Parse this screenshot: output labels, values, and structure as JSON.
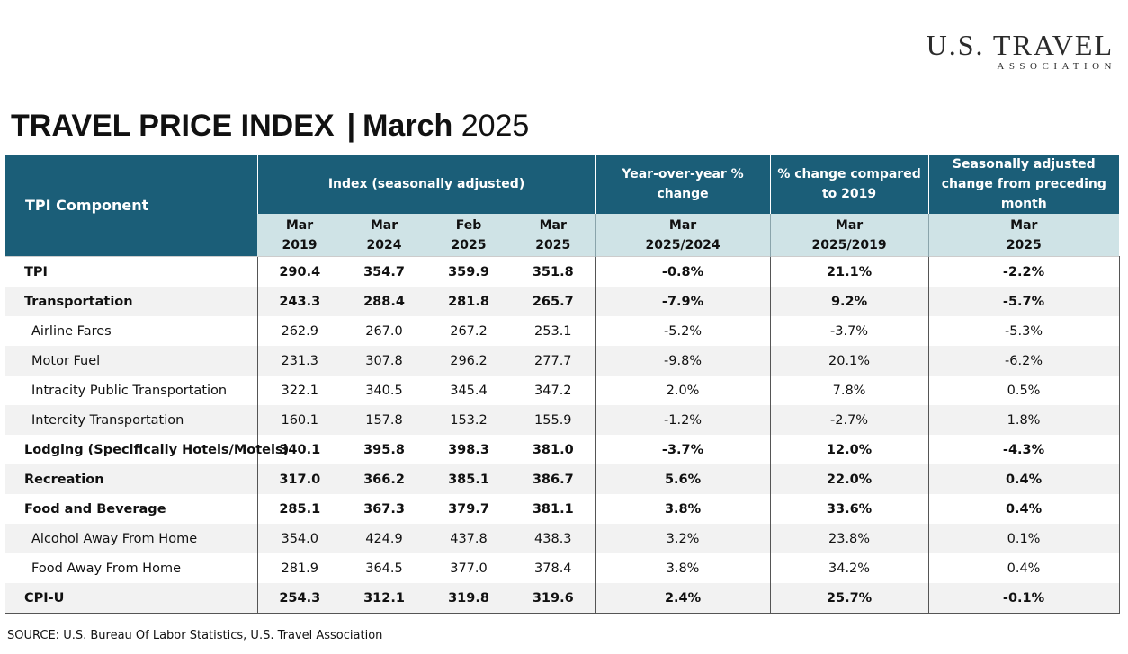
{
  "logo": {
    "main": "U.S. TRAVEL",
    "sub": "ASSOCIATION"
  },
  "title": {
    "bold": "TRAVEL PRICE INDEX",
    "separator": "|",
    "month": "March",
    "year": "2025"
  },
  "header": {
    "component": "TPI Component",
    "index_group": "Index  (seasonally adjusted)",
    "yoy": "Year-over-year % change",
    "vs2019": "% change compared to 2019",
    "mom": "Seasonally adjusted change from preceding month",
    "sub": [
      {
        "top": "Mar",
        "bottom": "2019"
      },
      {
        "top": "Mar",
        "bottom": "2024"
      },
      {
        "top": "Feb",
        "bottom": "2025"
      },
      {
        "top": "Mar",
        "bottom": "2025"
      },
      {
        "top": "Mar",
        "bottom": "2025/2024"
      },
      {
        "top": "Mar",
        "bottom": "2025/2019"
      },
      {
        "top": "Mar",
        "bottom": "2025"
      }
    ]
  },
  "rows": [
    {
      "label": "TPI",
      "v": [
        "290.4",
        "354.7",
        "359.9",
        "351.8",
        "-0.8%",
        "21.1%",
        "-2.2%"
      ]
    },
    {
      "label": "Transportation",
      "v": [
        "243.3",
        "288.4",
        "281.8",
        "265.7",
        "-7.9%",
        "9.2%",
        "-5.7%"
      ]
    },
    {
      "label": "Airline Fares",
      "v": [
        "262.9",
        "267.0",
        "267.2",
        "253.1",
        "-5.2%",
        "-3.7%",
        "-5.3%"
      ]
    },
    {
      "label": "Motor Fuel",
      "v": [
        "231.3",
        "307.8",
        "296.2",
        "277.7",
        "-9.8%",
        "20.1%",
        "-6.2%"
      ]
    },
    {
      "label": "Intracity Public Transportation",
      "v": [
        "322.1",
        "340.5",
        "345.4",
        "347.2",
        "2.0%",
        "7.8%",
        "0.5%"
      ]
    },
    {
      "label": "Intercity Transportation",
      "v": [
        "160.1",
        "157.8",
        "153.2",
        "155.9",
        "-1.2%",
        "-2.7%",
        "1.8%"
      ]
    },
    {
      "label": "Lodging (Specifically Hotels/Motels)",
      "v": [
        "340.1",
        "395.8",
        "398.3",
        "381.0",
        "-3.7%",
        "12.0%",
        "-4.3%"
      ]
    },
    {
      "label": "Recreation",
      "v": [
        "317.0",
        "366.2",
        "385.1",
        "386.7",
        "5.6%",
        "22.0%",
        "0.4%"
      ]
    },
    {
      "label": "Food and Beverage",
      "v": [
        "285.1",
        "367.3",
        "379.7",
        "381.1",
        "3.8%",
        "33.6%",
        "0.4%"
      ]
    },
    {
      "label": "Alcohol Away From Home",
      "v": [
        "354.0",
        "424.9",
        "437.8",
        "438.3",
        "3.2%",
        "23.8%",
        "0.1%"
      ]
    },
    {
      "label": "Food Away From Home",
      "v": [
        "281.9",
        "364.5",
        "377.0",
        "378.4",
        "3.8%",
        "34.2%",
        "0.4%"
      ]
    },
    {
      "label": "CPI-U",
      "v": [
        "254.3",
        "312.1",
        "319.8",
        "319.6",
        "2.4%",
        "25.7%",
        "-0.1%"
      ]
    }
  ],
  "source": "SOURCE: U.S. Bureau Of Labor Statistics, U.S. Travel Association"
}
